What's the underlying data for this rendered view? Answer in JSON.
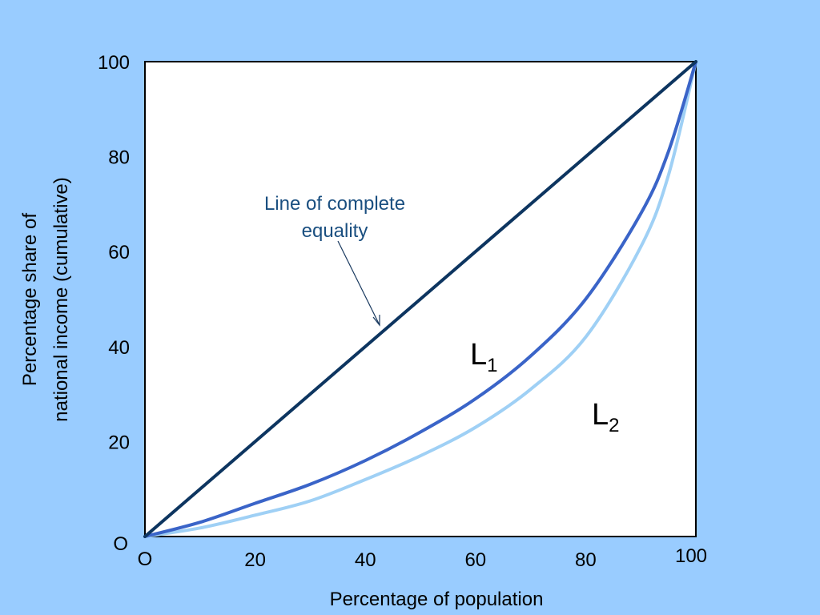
{
  "chart_data": {
    "type": "line",
    "xlabel": "Percentage of population",
    "ylabel_line1": "Percentage share of",
    "ylabel_line2": "national income (cumulative)",
    "xlim": [
      0,
      100
    ],
    "ylim": [
      0,
      100
    ],
    "x_origin_label": "O",
    "y_origin_label": "O",
    "x_ticks": [
      20,
      40,
      60,
      80,
      100
    ],
    "x_tick_labels": [
      "20",
      "40",
      "60",
      "80",
      "100"
    ],
    "y_ticks": [
      20,
      40,
      60,
      80,
      100
    ],
    "y_tick_labels": [
      "20",
      "40",
      "60",
      "80",
      "100"
    ],
    "grid": false,
    "annotation": {
      "line1": "Line of complete",
      "line2": "equality"
    },
    "series": [
      {
        "name": "Line of complete equality",
        "color": "#0d3560",
        "x": [
          0,
          100
        ],
        "y": [
          0,
          100
        ]
      },
      {
        "name": "L1",
        "label_main": "L",
        "label_sub": "1",
        "color": "#3a64c8",
        "x": [
          0,
          10,
          20,
          30,
          40,
          50,
          60,
          70,
          80,
          90,
          95,
          100
        ],
        "y": [
          0,
          3,
          7,
          11,
          16,
          22,
          29,
          38,
          50,
          68,
          81,
          100
        ]
      },
      {
        "name": "L2",
        "label_main": "L",
        "label_sub": "2",
        "color": "#9fd0f5",
        "x": [
          0,
          10,
          20,
          30,
          40,
          50,
          60,
          70,
          80,
          90,
          95,
          100
        ],
        "y": [
          0,
          1.8,
          4.5,
          7.5,
          12,
          17,
          23,
          31,
          42,
          61,
          76,
          100
        ]
      }
    ]
  }
}
